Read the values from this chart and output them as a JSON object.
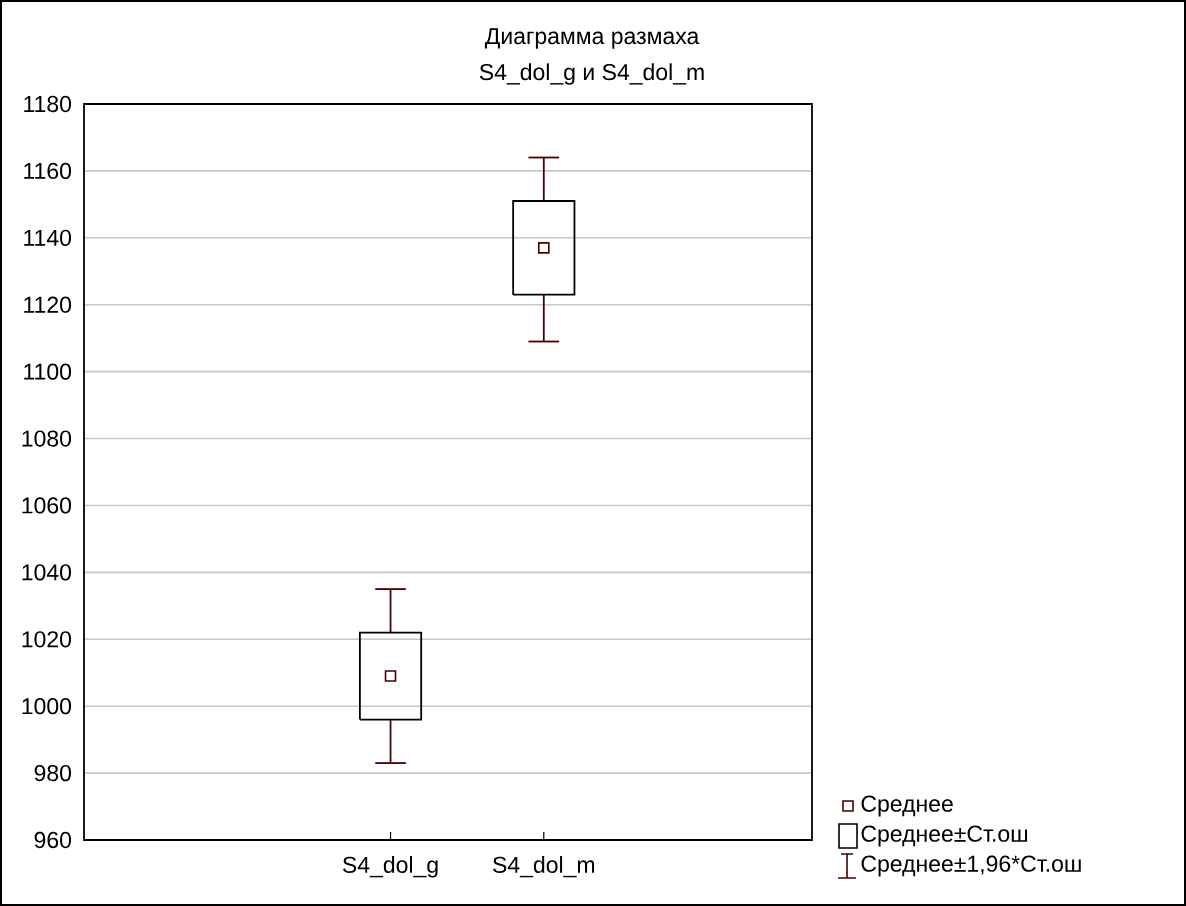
{
  "chart_data": {
    "type": "box",
    "title": "Диаграмма размаха",
    "subtitle": "S4_dol_g и S4_dol_m",
    "categories": [
      "S4_dol_g",
      "S4_dol_m"
    ],
    "boxes": [
      {
        "low": 983,
        "q1": 996,
        "median": 1009,
        "q3": 1022,
        "high": 1035
      },
      {
        "low": 1109,
        "q1": 1123,
        "median": 1137,
        "q3": 1151,
        "high": 1164
      }
    ],
    "color": "#000000",
    "marker": "square",
    "ylim": [
      960,
      1180
    ],
    "yticks": [
      960,
      980,
      1000,
      1020,
      1040,
      1060,
      1080,
      1100,
      1120,
      1140,
      1160,
      1180
    ],
    "grid": "y",
    "annotations": [
      "Среднее",
      "Среднее±Ст.ош",
      "Среднее±1,96*Ст.ош"
    ]
  }
}
